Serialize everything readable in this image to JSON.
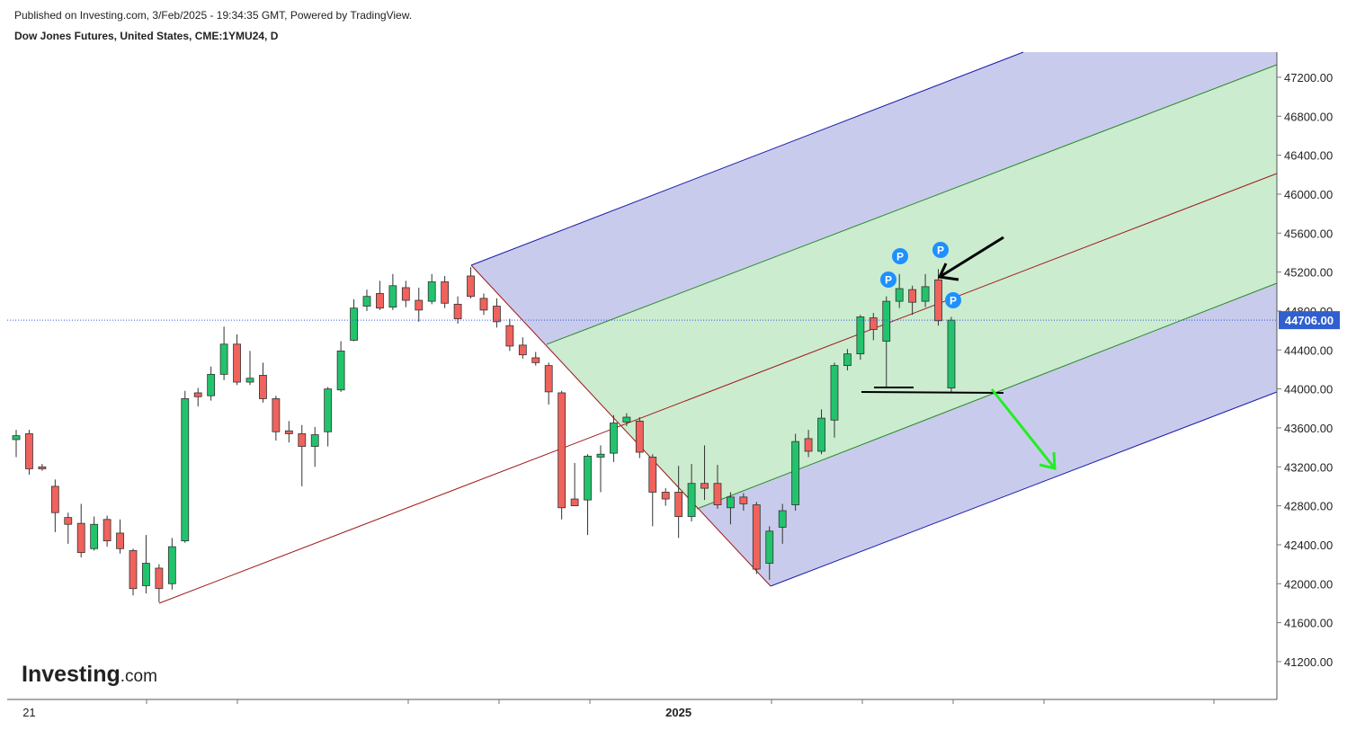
{
  "header": {
    "published": "Published on Investing.com, 3/Feb/2025 - 19:34:35 GMT, Powered by TradingView.",
    "logo_main": "Investing",
    "logo_suffix": ".com"
  },
  "chart_data": {
    "type": "candlestick",
    "title": "Dow Jones Futures, United States, CME:1YMU24, D",
    "categories": [
      null,
      "21",
      null,
      null,
      null,
      null,
      null,
      null,
      null,
      null,
      null,
      null,
      null,
      null,
      null,
      null,
      null,
      null,
      null,
      null,
      null,
      null,
      null,
      null,
      null,
      null,
      null,
      null,
      null,
      null,
      null,
      null,
      null,
      null,
      null,
      null,
      null,
      null,
      null,
      null,
      null,
      null,
      null,
      null,
      null,
      null,
      null,
      null,
      null,
      null,
      null,
      "2025",
      null,
      null,
      null,
      null,
      null,
      null,
      null,
      null,
      null,
      null,
      null,
      null,
      null,
      null,
      null,
      null,
      null,
      null,
      null,
      null,
      null
    ],
    "up_color": "#22c36c",
    "down_color": "#f0625c",
    "open": [
      43480,
      43540,
      43200,
      43000,
      42680,
      42620,
      42360,
      42660,
      42520,
      42340,
      41980,
      42160,
      42000,
      42440,
      43960,
      43930,
      44150,
      44460,
      44070,
      44140,
      43900,
      43570,
      43540,
      43410,
      43560,
      43990,
      44500,
      44850,
      44980,
      44840,
      45040,
      44910,
      44900,
      45100,
      44870,
      45160,
      44930,
      44850,
      44650,
      44450,
      44320,
      44240,
      43960,
      42870,
      42860,
      43300,
      43340,
      43660,
      43670,
      43300,
      42940,
      42940,
      42690,
      43030,
      43030,
      42780,
      42890,
      42810,
      42210,
      42580,
      42810,
      43490,
      43360,
      43680,
      44240,
      44360,
      44730,
      44490,
      44900,
      45020,
      44900,
      45120,
      44010
    ],
    "high": [
      43580,
      43580,
      43230,
      43070,
      42730,
      42820,
      42690,
      42700,
      42660,
      42360,
      42500,
      42200,
      42470,
      43980,
      44010,
      44230,
      44640,
      44560,
      44390,
      44270,
      43930,
      43670,
      43630,
      43610,
      44020,
      44490,
      44920,
      45020,
      45110,
      45180,
      45110,
      45040,
      45180,
      45160,
      44950,
      45250,
      44980,
      44930,
      44720,
      44530,
      44380,
      44270,
      43980,
      43240,
      43330,
      43420,
      43730,
      43750,
      43710,
      43330,
      42980,
      43210,
      43230,
      43420,
      43220,
      42940,
      42930,
      42840,
      42590,
      42820,
      43540,
      43580,
      43790,
      44270,
      44410,
      44760,
      44780,
      44950,
      45180,
      45060,
      45180,
      45230,
      44740
    ],
    "low": [
      43300,
      43120,
      43160,
      42530,
      42410,
      42270,
      42340,
      42380,
      42310,
      41880,
      41900,
      41810,
      41940,
      42420,
      43820,
      43880,
      44090,
      44040,
      44040,
      43860,
      43470,
      43450,
      43000,
      43200,
      43410,
      43970,
      44490,
      44800,
      44810,
      44810,
      44840,
      44690,
      44870,
      44830,
      44670,
      44930,
      44760,
      44630,
      44390,
      44310,
      44240,
      43840,
      42660,
      42800,
      42500,
      42940,
      43250,
      43620,
      43290,
      42590,
      42800,
      42470,
      42640,
      42860,
      42770,
      42610,
      42750,
      42100,
      42040,
      42410,
      42750,
      43300,
      43330,
      43500,
      44190,
      44300,
      44500,
      44020,
      44830,
      44760,
      44840,
      44650,
      43970
    ],
    "close": [
      43520,
      43180,
      43180,
      42730,
      42610,
      42320,
      42610,
      42440,
      42360,
      41950,
      42210,
      41950,
      42380,
      43900,
      43920,
      44150,
      44460,
      44070,
      44110,
      43900,
      43560,
      43540,
      43410,
      43530,
      44000,
      44390,
      44830,
      44950,
      44830,
      45060,
      44910,
      44810,
      45100,
      44880,
      44720,
      44950,
      44810,
      44690,
      44440,
      44350,
      44270,
      43970,
      42780,
      42800,
      43310,
      43330,
      43650,
      43710,
      43350,
      42940,
      42870,
      42690,
      43030,
      42980,
      42810,
      42890,
      42820,
      42150,
      42540,
      42750,
      43460,
      43360,
      43700,
      44240,
      44360,
      44740,
      44610,
      44900,
      45030,
      44890,
      45050,
      44700,
      44706
    ],
    "ylim": [
      40812,
      47458
    ],
    "yticks": [
      {
        "value": 41200,
        "label": "41200.00"
      },
      {
        "value": 41600,
        "label": "41600.00"
      },
      {
        "value": 42000,
        "label": "42000.00"
      },
      {
        "value": 42400,
        "label": "42400.00"
      },
      {
        "value": 42800,
        "label": "42800.00"
      },
      {
        "value": 43200,
        "label": "43200.00"
      },
      {
        "value": 43600,
        "label": "43600.00"
      },
      {
        "value": 44000,
        "label": "44000.00"
      },
      {
        "value": 44400,
        "label": "44400.00"
      },
      {
        "value": 44800,
        "label": "44800.00"
      },
      {
        "value": 45200,
        "label": "45200.00"
      },
      {
        "value": 45600,
        "label": "45600.00"
      },
      {
        "value": 46000,
        "label": "46000.00"
      },
      {
        "value": 46400,
        "label": "46400.00"
      },
      {
        "value": 46800,
        "label": "46800.00"
      },
      {
        "value": 47200,
        "label": "47200.00"
      }
    ],
    "last_price": {
      "value": 44706,
      "label": "44706.00"
    },
    "marker_label": "P"
  }
}
